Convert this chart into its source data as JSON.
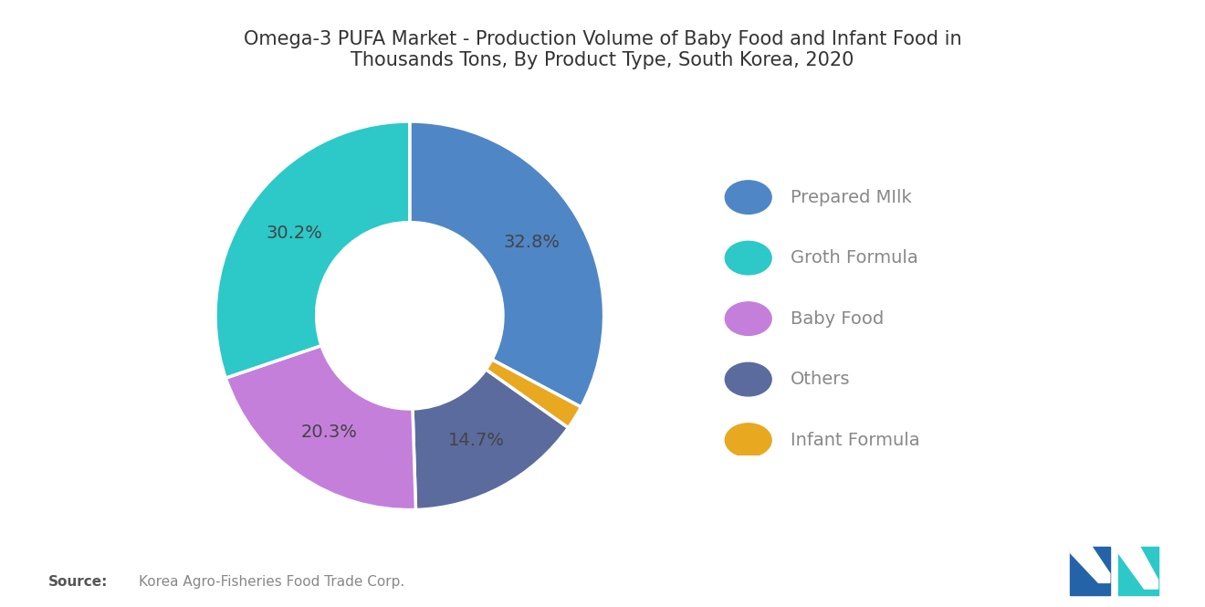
{
  "title": "Omega-3 PUFA Market - Production Volume of Baby Food and Infant Food in\nThousands Tons, By Product Type, South Korea, 2020",
  "slices": [
    32.8,
    2.0,
    14.7,
    20.3,
    30.2
  ],
  "labels": [
    "32.8%",
    "",
    "14.7%",
    "20.3%",
    "30.2%"
  ],
  "colors": [
    "#4F86C6",
    "#E8A820",
    "#5B6B9E",
    "#C47FDB",
    "#2DC8C8"
  ],
  "legend_labels": [
    "Prepared MIlk",
    "Groth Formula",
    "Baby Food",
    "Others",
    "Infant Formula"
  ],
  "legend_colors": [
    "#4F86C6",
    "#2DC8C8",
    "#C47FDB",
    "#5B6B9E",
    "#E8A820"
  ],
  "source_bold": "Source:",
  "source_text": "Korea Agro-Fisheries Food Trade Corp.",
  "background_color": "#FFFFFF",
  "title_fontsize": 15,
  "label_fontsize": 14,
  "legend_fontsize": 14,
  "label_color": "#444444"
}
